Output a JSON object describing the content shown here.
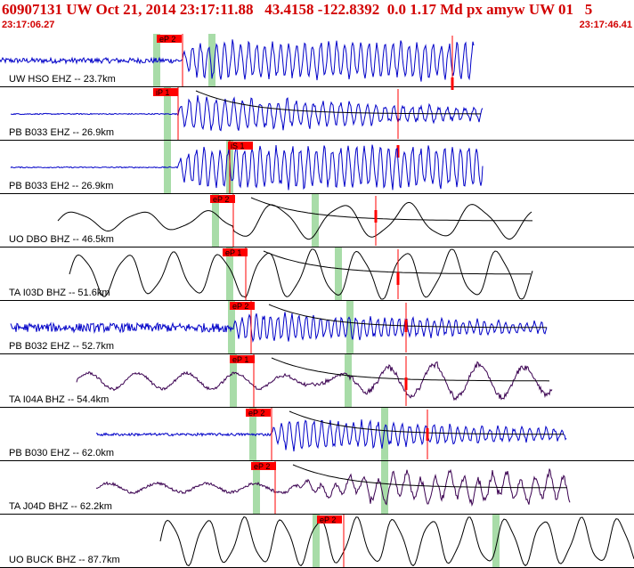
{
  "header": {
    "title": "60907131 UW Oct 21, 2014 23:17:11.88   43.4158 -122.8392  0.0 1.17 Md px amyw UW 01   5",
    "start_time": "23:17:06.27",
    "end_time": "23:17:46.41"
  },
  "colors": {
    "title": "#d20000",
    "pick": "#ff0000",
    "window": "#a8dca8",
    "trace_vertical": "#0000c8",
    "trace_long_period": "#000000",
    "trace_mixed": "#3a0050"
  },
  "traces": [
    {
      "label": "UW HSO EHZ -- 23.7km",
      "pick": "eP 2",
      "trace_color": "#0000c8"
    },
    {
      "label": "PB B033 EHZ -- 26.9km",
      "pick": "iP 1",
      "trace_color": "#0000c8"
    },
    {
      "label": "PB B033 EH2 -- 26.9km",
      "pick": "iS 1",
      "trace_color": "#0000c8"
    },
    {
      "label": "UO DBO BHZ -- 46.5km",
      "pick": "eP 2",
      "trace_color": "#000000"
    },
    {
      "label": "TA I03D BHZ -- 51.6km",
      "pick": "eP 1",
      "trace_color": "#000000"
    },
    {
      "label": "PB B032 EHZ -- 52.7km",
      "pick": "eP 2",
      "trace_color": "#0000c8"
    },
    {
      "label": "TA I04A BHZ -- 54.4km",
      "pick": "eP 1",
      "trace_color": "#3a0050"
    },
    {
      "label": "PB B030 EHZ -- 62.0km",
      "pick": "eP 2",
      "trace_color": "#0000c8"
    },
    {
      "label": "TA J04D BHZ -- 62.2km",
      "pick": "eP 2",
      "trace_color": "#3a0050"
    },
    {
      "label": "UO BUCK BHZ -- 87.7km",
      "pick": "eP 2",
      "trace_color": "#000000"
    }
  ]
}
